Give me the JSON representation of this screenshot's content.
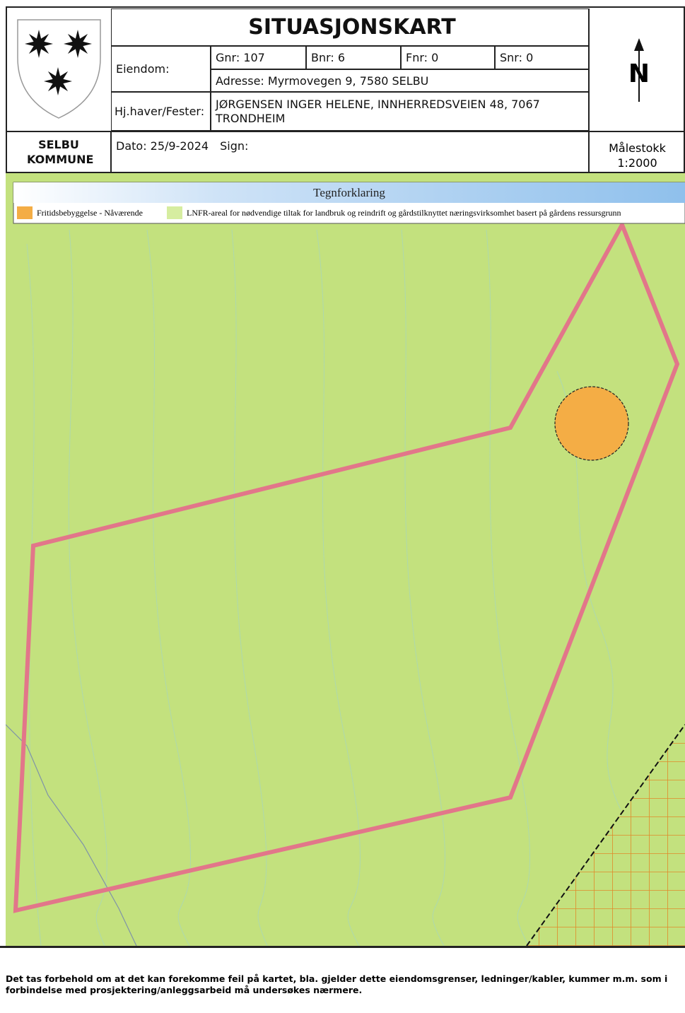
{
  "header": {
    "title": "SITUASJONSKART",
    "municipality": "SELBU KOMMUNE",
    "property_label": "Eiendom:",
    "gnr": "Gnr: 107",
    "bnr": "Bnr: 6",
    "fnr": "Fnr: 0",
    "snr": "Snr: 0",
    "address": "Adresse: Myrmovegen 9, 7580 SELBU",
    "owner_label": "Hj.haver/Fester:",
    "owner": "JØRGENSEN INGER HELENE, INNHERREDSVEIEN 48, 7067 TRONDHEIM",
    "date": "Dato: 25/9-2024",
    "sign": "Sign:",
    "north": "N",
    "scale_label": "Målestokk",
    "scale": "1:2000"
  },
  "legend": {
    "title": "Tegnforklaring",
    "items": [
      "Fritidsbebyggelse - Nåværende",
      "LNFR-areal for nødvendige tiltak for landbruk og reindrift og gårdstilknyttet næringsvirksomhet basert på gårdens ressursgrunn"
    ]
  },
  "footer": {
    "disclaimer": "Det tas forbehold om at det kan forekomme feil på kartet, bla. gjelder dette eiendomsgrenser, ledninger/kabler, kummer m.m. som i forbindelse med prosjektering/anleggsarbeid må undersøkes nærmere."
  }
}
